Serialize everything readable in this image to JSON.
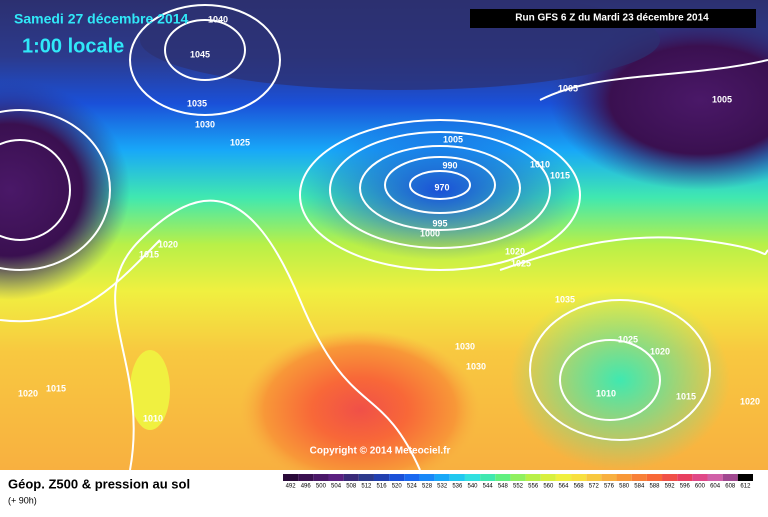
{
  "header": {
    "date": "Samedi 27 décembre 2014",
    "time": "1:00 locale",
    "run": "Run GFS 6 Z du Mardi 23 décembre 2014"
  },
  "copyright": "Copyright © 2014 Meteociel.fr",
  "footer": {
    "title": "Géop. Z500 & pression au sol",
    "lead": "(+ 90h)"
  },
  "isobar_labels": [
    "1045",
    "1040",
    "1035",
    "1030",
    "1025",
    "1005",
    "990",
    "970",
    "995",
    "1000",
    "1010",
    "1015",
    "1005",
    "1005",
    "1020",
    "1025",
    "1035",
    "1030",
    "1030",
    "1025",
    "1020",
    "1010",
    "1015",
    "1020",
    "1020",
    "1015",
    "1015",
    "1020",
    "1010"
  ],
  "colorbar": {
    "labels": [
      492,
      496,
      500,
      504,
      508,
      512,
      516,
      520,
      524,
      528,
      532,
      536,
      540,
      544,
      548,
      552,
      556,
      560,
      564,
      568,
      572,
      576,
      580,
      584,
      588,
      592,
      596,
      600,
      604,
      608,
      612
    ],
    "colors": [
      "#2a0a3a",
      "#3a1050",
      "#4a1868",
      "#5a2080",
      "#3a2a78",
      "#2c3a8c",
      "#2240b0",
      "#1a50d8",
      "#1a68f0",
      "#1888f8",
      "#18a8f8",
      "#20c8f0",
      "#30e0e0",
      "#40e8b0",
      "#60f080",
      "#90f060",
      "#b8f048",
      "#d8f040",
      "#f0f040",
      "#f8e040",
      "#f8c840",
      "#f8b040",
      "#f89838",
      "#f88038",
      "#f86838",
      "#f05048",
      "#e84060",
      "#e04888",
      "#d060a8",
      "#a04890",
      "#000000"
    ]
  }
}
